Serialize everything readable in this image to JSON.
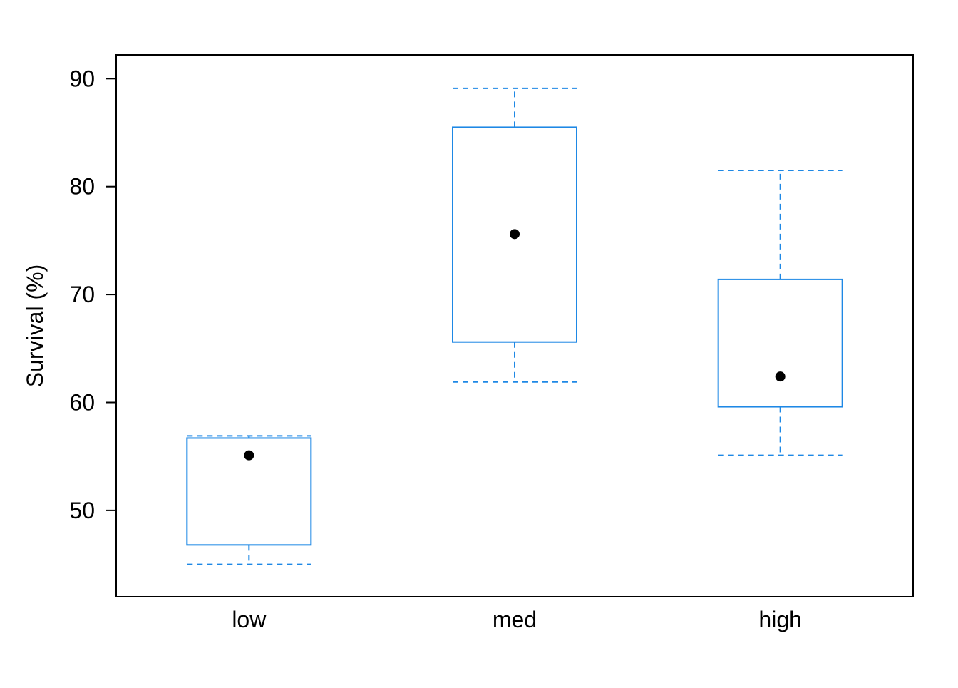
{
  "chart_data": {
    "type": "boxplot",
    "title": "",
    "xlabel": "",
    "ylabel": "Survival (%)",
    "ylim": [
      42,
      92.2
    ],
    "yticks": [
      50,
      60,
      70,
      80,
      90
    ],
    "grid": false,
    "box_color": "#1E88E5",
    "point_color": "#000000",
    "categories": [
      "low",
      "med",
      "high"
    ],
    "boxes": [
      {
        "category": "low",
        "whisker_low": 45.0,
        "q1": 46.8,
        "q3": 56.7,
        "whisker_high": 56.9,
        "point": 55.1
      },
      {
        "category": "med",
        "whisker_low": 61.9,
        "q1": 65.6,
        "q3": 85.5,
        "whisker_high": 89.1,
        "point": 75.6
      },
      {
        "category": "high",
        "whisker_low": 55.1,
        "q1": 59.6,
        "q3": 71.4,
        "whisker_high": 81.5,
        "point": 62.4
      }
    ]
  }
}
